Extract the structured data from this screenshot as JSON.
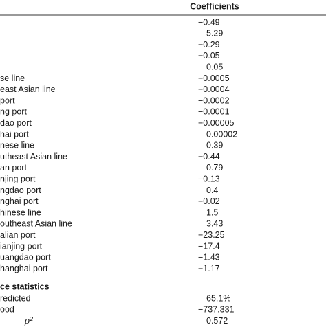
{
  "table": {
    "header": "Coefficients",
    "rows": [
      {
        "label": "",
        "value": "−0.49"
      },
      {
        "label": "",
        "value": "5.29"
      },
      {
        "label": "",
        "value": "−0.29"
      },
      {
        "label": "",
        "value": "−0.05"
      },
      {
        "label": "",
        "value": "0.05"
      },
      {
        "label": "se line",
        "value": "−0.0005"
      },
      {
        "label": "east Asian line",
        "value": "−0.0004"
      },
      {
        "label": "port",
        "value": "−0.0002"
      },
      {
        "label": "ng port",
        "value": "−0.0001"
      },
      {
        "label": "dao port",
        "value": "−0.00005"
      },
      {
        "label": "hai port",
        "value": "0.00002"
      },
      {
        "label": "nese line",
        "value": "0.39"
      },
      {
        "label": "utheast Asian line",
        "value": "−0.44"
      },
      {
        "label": "an port",
        "value": "0.79"
      },
      {
        "label": "njing port",
        "value": "−0.13"
      },
      {
        "label": "ngdao port",
        "value": "0.4"
      },
      {
        "label": "nghai port",
        "value": "−0.02"
      },
      {
        "label": "hinese line",
        "value": "1.5"
      },
      {
        "label": "outheast Asian line",
        "value": "3.43"
      },
      {
        "label": "alian port",
        "value": "−23.25"
      },
      {
        "label": "ianjing port",
        "value": "−17.4"
      },
      {
        "label": "uangdao port",
        "value": "−1.43"
      },
      {
        "label": "hanghai port",
        "value": "−1.17"
      }
    ],
    "section": "ce statistics",
    "stats": [
      {
        "label": "redicted",
        "value": "65.1%"
      },
      {
        "label": "ood",
        "value": "−737.331"
      },
      {
        "label": "ρ²",
        "value": "0.572"
      }
    ]
  }
}
